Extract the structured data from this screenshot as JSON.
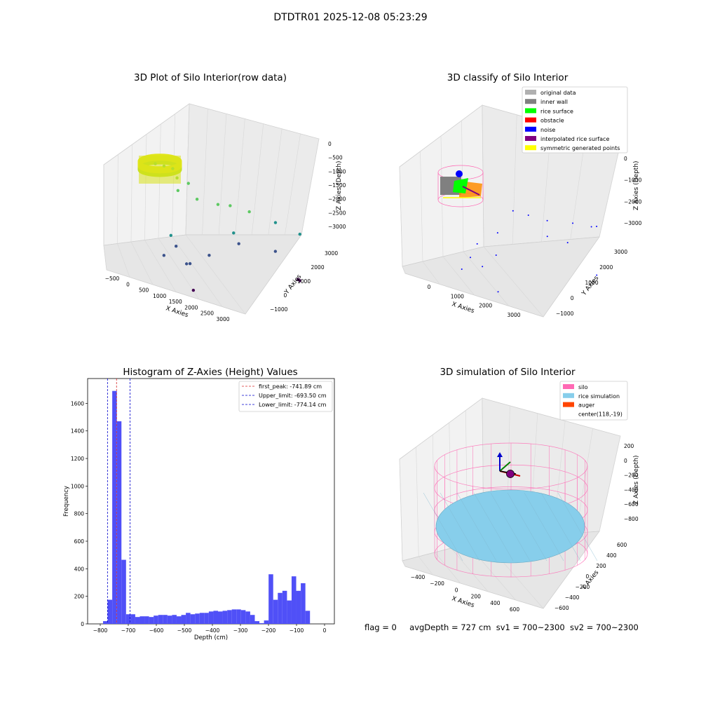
{
  "main_title": "DTDTR01 2025-12-08 05:23:29",
  "status": {
    "flag": "flag = 0",
    "avg_depth": "avgDepth = 727 cm",
    "sv1": "sv1 = 700~2300",
    "sv2": "sv2 = 700~2300"
  },
  "colors": {
    "silo": "#ff69b4",
    "rice_simulation": "#87ceeb",
    "auger": "#ff4500",
    "histogram_bar": "#5050f7",
    "first_peak_line": "#d62728",
    "limit_lines": "#0000cc"
  },
  "chart_data": [
    {
      "type": "scatter",
      "title": "3D Plot of Silo Interior(row data)",
      "xlabel": "X Axies",
      "ylabel": "Y Axies",
      "zlabel": "Z Axies (Depth)",
      "x_ticks": [
        "−500",
        "0",
        "500",
        "1000",
        "1500",
        "2000",
        "2500",
        "3000"
      ],
      "y_ticks": [
        "−1000",
        "0",
        "1000",
        "2000",
        "3000"
      ],
      "z_ticks": [
        "0",
        "−500",
        "−1000",
        "−1500",
        "−2000",
        "−2500",
        "−3000"
      ],
      "xlim": [
        -700,
        3300
      ],
      "ylim": [
        -1300,
        3300
      ],
      "zlim": [
        -3400,
        0
      ],
      "colormap": "viridis",
      "points": [
        {
          "x": 100,
          "y": -100,
          "z": -700
        },
        {
          "x": 300,
          "y": 0,
          "z": -720
        },
        {
          "x": 500,
          "y": 100,
          "z": -750
        },
        {
          "x": 700,
          "y": -50,
          "z": -900
        },
        {
          "x": 600,
          "y": 200,
          "z": -1300
        },
        {
          "x": 800,
          "y": 400,
          "z": -1100
        },
        {
          "x": 1100,
          "y": 300,
          "z": -1400
        },
        {
          "x": 1500,
          "y": 700,
          "z": -1500
        },
        {
          "x": 1600,
          "y": 1200,
          "z": -1600
        },
        {
          "x": 2000,
          "y": 1500,
          "z": -1700
        },
        {
          "x": 2400,
          "y": 2200,
          "z": -2000
        },
        {
          "x": 2800,
          "y": 2800,
          "z": -2300
        },
        {
          "x": 1800,
          "y": 1000,
          "z": -2200
        },
        {
          "x": 700,
          "y": -400,
          "z": -2300
        },
        {
          "x": 900,
          "y": -500,
          "z": -2500
        },
        {
          "x": 600,
          "y": -600,
          "z": -2800
        },
        {
          "x": 1200,
          "y": -300,
          "z": -2900
        },
        {
          "x": 1000,
          "y": -100,
          "z": -3000
        },
        {
          "x": 1500,
          "y": 200,
          "z": -2700
        },
        {
          "x": 2000,
          "y": 900,
          "z": -2400
        },
        {
          "x": 2600,
          "y": 1800,
          "z": -2600
        },
        {
          "x": 3000,
          "y": 2300,
          "z": -3300
        },
        {
          "x": 3000,
          "y": 2400,
          "z": -3350
        },
        {
          "x": 1600,
          "y": -900,
          "z": -3350
        }
      ]
    },
    {
      "type": "scatter",
      "title": "3D classify of Silo Interior",
      "xlabel": "X Axies",
      "ylabel": "Y Axies",
      "zlabel": "Z Axies (Depth)",
      "x_ticks": [
        "0",
        "1000",
        "2000",
        "3000"
      ],
      "y_ticks": [
        "−1000",
        "0",
        "1000",
        "2000",
        "3000"
      ],
      "z_ticks": [
        "0",
        "−1000",
        "−2000",
        "−3000"
      ],
      "xlim": [
        -700,
        3300
      ],
      "ylim": [
        -1300,
        3300
      ],
      "zlim": [
        -3400,
        0
      ],
      "legend_position": "top-right",
      "legend": [
        {
          "label": "original data",
          "color": "#b0b0b0"
        },
        {
          "label": "inner wall",
          "color": "#808080"
        },
        {
          "label": "rice surface",
          "color": "#00ff00"
        },
        {
          "label": "obstacle",
          "color": "#ff0000"
        },
        {
          "label": "noise",
          "color": "#0000ff"
        },
        {
          "label": "interpolated rice surface",
          "color": "#800080"
        },
        {
          "label": "symmetric generated points",
          "color": "#ffff00"
        }
      ],
      "noise_points": [
        {
          "x": 1500,
          "y": 600,
          "z": -1200
        },
        {
          "x": 1800,
          "y": 900,
          "z": -1300
        },
        {
          "x": 2200,
          "y": 1200,
          "z": -1400
        },
        {
          "x": 2600,
          "y": 1900,
          "z": -1500
        },
        {
          "x": 3000,
          "y": 2500,
          "z": -1600
        },
        {
          "x": 2800,
          "y": 2600,
          "z": -1700
        },
        {
          "x": 1200,
          "y": 300,
          "z": -1900
        },
        {
          "x": 900,
          "y": -300,
          "z": -2200
        },
        {
          "x": 800,
          "y": -500,
          "z": -2600
        },
        {
          "x": 1400,
          "y": -200,
          "z": -2400
        },
        {
          "x": 1100,
          "y": -400,
          "z": -2800
        },
        {
          "x": 2500,
          "y": 1800,
          "z": -2100
        },
        {
          "x": 3100,
          "y": 2300,
          "z": -3000
        },
        {
          "x": 1700,
          "y": -700,
          "z": -3300
        },
        {
          "x": 2300,
          "y": 1000,
          "z": -1800
        },
        {
          "x": 600,
          "y": -600,
          "z": -3000
        }
      ]
    },
    {
      "type": "bar",
      "title": "Histogram of Z-Axies (Height) Values",
      "xlabel": "Depth (cm)",
      "ylabel": "Frequency",
      "xlim": [
        -845,
        35
      ],
      "ylim": [
        0,
        1780
      ],
      "x_ticks": [
        -800,
        -700,
        -600,
        -500,
        -400,
        -300,
        -200,
        -100,
        0
      ],
      "y_ticks": [
        0,
        200,
        400,
        600,
        800,
        1000,
        1200,
        1400,
        1600
      ],
      "bin_start": -790,
      "bin_width": 16.4,
      "values": [
        20,
        175,
        1690,
        1470,
        465,
        70,
        70,
        50,
        55,
        55,
        50,
        60,
        65,
        65,
        60,
        65,
        55,
        65,
        80,
        70,
        75,
        80,
        80,
        90,
        95,
        90,
        95,
        100,
        105,
        105,
        100,
        90,
        65,
        20,
        5,
        25,
        360,
        175,
        225,
        240,
        170,
        345,
        240,
        295,
        95
      ],
      "lines": [
        {
          "label": "first_peak: -741.89 cm",
          "x": -741.89,
          "color": "#d62728"
        },
        {
          "label": "Upper_limit: -693.50 cm",
          "x": -693.5,
          "color": "#0000cc"
        },
        {
          "label": "Lower_limit: -774.14 cm",
          "x": -774.14,
          "color": "#0000cc"
        }
      ],
      "legend_position": "top-right"
    },
    {
      "type": "scatter",
      "title": "3D simulation of Silo Interior",
      "xlabel": "X Axies",
      "ylabel": "Y Axies",
      "zlabel": "Z Axies (Depth)",
      "x_ticks": [
        "−400",
        "−200",
        "0",
        "200",
        "400",
        "600"
      ],
      "y_ticks": [
        "−600",
        "−400",
        "−200",
        "0",
        "200",
        "400",
        "600"
      ],
      "z_ticks": [
        "200",
        "0",
        "−200",
        "−400",
        "−600",
        "−800"
      ],
      "legend_position": "top-right",
      "legend": [
        {
          "label": "silo",
          "color": "#ff69b4"
        },
        {
          "label": "rice simulation",
          "color": "#87ceeb"
        },
        {
          "label": "auger",
          "color": "#ff4500"
        },
        {
          "label": "center(118,-19)",
          "color": ""
        }
      ]
    }
  ]
}
